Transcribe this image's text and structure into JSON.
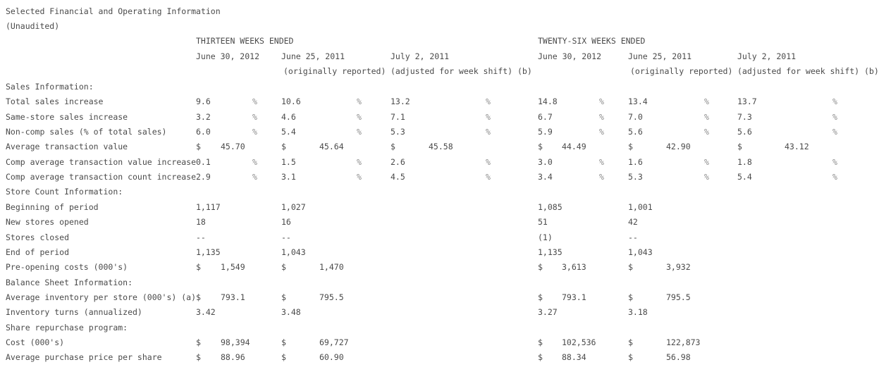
{
  "title": "Selected Financial and Operating Information",
  "subtitle": "(Unaudited)",
  "group_headers": [
    "THIRTEEN WEEKS ENDED",
    "TWENTY-SIX WEEKS ENDED"
  ],
  "columns": [
    {
      "date": "June 30, 2012",
      "note": ""
    },
    {
      "date": "June 25, 2011",
      "note": "(originally reported)"
    },
    {
      "date": "July 2, 2011",
      "note": "(adjusted for week shift) (b)"
    },
    {
      "date": "June 30, 2012",
      "note": ""
    },
    {
      "date": "June 25, 2011",
      "note": "(originally reported)"
    },
    {
      "date": "July 2, 2011",
      "note": "(adjusted for week shift) (b)"
    }
  ],
  "rows": [
    {
      "type": "section",
      "label": "Sales Information:"
    },
    {
      "type": "pct",
      "label": "Total sales increase",
      "values": [
        "9.6",
        "10.6",
        "13.2",
        "14.8",
        "13.4",
        "13.7"
      ]
    },
    {
      "type": "pct",
      "label": "Same-store sales increase",
      "values": [
        "3.2",
        "4.6",
        "7.1",
        "6.7",
        "7.0",
        "7.3"
      ]
    },
    {
      "type": "pct",
      "label": "Non-comp sales (% of total sales)",
      "values": [
        "6.0",
        "5.4",
        "5.3",
        "5.9",
        "5.6",
        "5.6"
      ]
    },
    {
      "type": "usd",
      "label": "Average transaction value",
      "values": [
        "45.70",
        "45.64",
        "45.58",
        "44.49",
        "42.90",
        "43.12"
      ]
    },
    {
      "type": "pct",
      "label": "Comp average transaction value increase",
      "values": [
        "0.1",
        "1.5",
        "2.6",
        "3.0",
        "1.6",
        "1.8"
      ]
    },
    {
      "type": "pct",
      "label": "Comp average transaction count increase",
      "values": [
        "2.9",
        "3.1",
        "4.5",
        "3.4",
        "5.3",
        "5.4"
      ]
    },
    {
      "type": "section",
      "label": "Store Count Information:"
    },
    {
      "type": "plain",
      "label": "Beginning of period",
      "values": [
        "1,117",
        "1,027",
        "",
        "1,085",
        "1,001",
        ""
      ]
    },
    {
      "type": "plain",
      "label": "New stores opened",
      "values": [
        "18",
        "16",
        "",
        "51",
        "42",
        ""
      ]
    },
    {
      "type": "plain",
      "label": "Stores closed",
      "values": [
        "--",
        "--",
        "",
        "(1)",
        "--",
        ""
      ]
    },
    {
      "type": "plain",
      "label": "End of period",
      "values": [
        "1,135",
        "1,043",
        "",
        "1,135",
        "1,043",
        ""
      ]
    },
    {
      "type": "usd",
      "label": "Pre-opening costs (000's)",
      "values": [
        "1,549",
        "1,470",
        "",
        "3,613",
        "3,932",
        ""
      ]
    },
    {
      "type": "section",
      "label": "Balance Sheet Information:"
    },
    {
      "type": "usd",
      "label": "Average inventory per store (000's) (a)",
      "values": [
        "793.1",
        "795.5",
        "",
        "793.1",
        "795.5",
        ""
      ]
    },
    {
      "type": "plain",
      "label": "Inventory turns (annualized)",
      "values": [
        "3.42",
        "3.48",
        "",
        "3.27",
        "3.18",
        ""
      ]
    },
    {
      "type": "section",
      "label": "Share repurchase program:"
    },
    {
      "type": "usd",
      "label": "Cost (000's)",
      "values": [
        "98,394",
        "69,727",
        "",
        "102,536",
        "122,873",
        ""
      ]
    },
    {
      "type": "usd",
      "label": "Average purchase price per share",
      "values": [
        "88.96",
        "60.90",
        "",
        "88.34",
        "56.98",
        ""
      ]
    }
  ],
  "symbols": {
    "percent": "%",
    "dollar": "$"
  }
}
